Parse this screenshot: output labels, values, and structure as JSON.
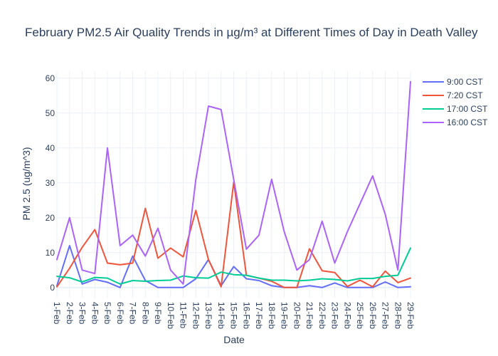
{
  "chart_data": {
    "type": "line",
    "title": "February PM2.5 Air Quality Trends in µg/m³ at Different Times of Day in Death Valley",
    "xlabel": "Date",
    "ylabel": "PM 2.5 (ug/m^3)",
    "ylim": [
      -2.9,
      62
    ],
    "yticks": [
      0,
      10,
      20,
      30,
      40,
      50,
      60
    ],
    "grid": true,
    "legend_position": "top-right",
    "categories": [
      "1-Feb",
      "2-Feb",
      "3-Feb",
      "4-Feb",
      "5-Feb",
      "6-Feb",
      "7-Feb",
      "8-Feb",
      "9-Feb",
      "10-Feb",
      "11-Feb",
      "12-Feb",
      "13-Feb",
      "14-Feb",
      "15-Feb",
      "16-Feb",
      "17-Feb",
      "18-Feb",
      "19-Feb",
      "20-Feb",
      "21-Feb",
      "22-Feb",
      "23-Feb",
      "24-Feb",
      "25-Feb",
      "26-Feb",
      "27-Feb",
      "28-Feb",
      "29-Feb"
    ],
    "series": [
      {
        "name": "9:00 CST",
        "color": "#636efa",
        "values": [
          0.5,
          12,
          1,
          2.3,
          1.5,
          0,
          9,
          2,
          0,
          0,
          0,
          2.5,
          8,
          0.5,
          6,
          2.5,
          2,
          0.5,
          0,
          0,
          0.5,
          0,
          1.3,
          0,
          0,
          0,
          1.6,
          0,
          0.2
        ]
      },
      {
        "name": "7:20 CST",
        "color": "#ef553b",
        "values": [
          0.2,
          5.5,
          11.5,
          16.6,
          7,
          6.5,
          7,
          22.7,
          8.4,
          11.3,
          8.8,
          22.1,
          8,
          0.2,
          30.2,
          3.5,
          2.7,
          1.8,
          0,
          0,
          11.1,
          4.8,
          4.3,
          0.3,
          2.1,
          0.2,
          4.7,
          1.4,
          2.7
        ]
      },
      {
        "name": "17:00 CST",
        "color": "#00cc96",
        "values": [
          3.2,
          2.8,
          1.6,
          2.9,
          2.7,
          1,
          2,
          1.8,
          2,
          2.1,
          3.3,
          2.8,
          2.7,
          4.4,
          3.7,
          3.5,
          2.7,
          2.1,
          2.1,
          1.9,
          2.1,
          2.5,
          2.3,
          1.9,
          2.6,
          2.6,
          3.2,
          3.5,
          11.3
        ]
      },
      {
        "name": "16:00 CST",
        "color": "#ab63fa",
        "values": [
          8,
          20,
          5,
          4,
          40,
          12,
          15,
          9,
          17,
          5,
          1,
          31,
          52,
          51,
          31,
          11,
          15,
          31,
          16,
          5,
          8,
          19,
          7,
          16,
          24,
          32,
          21,
          5,
          59
        ]
      }
    ]
  }
}
